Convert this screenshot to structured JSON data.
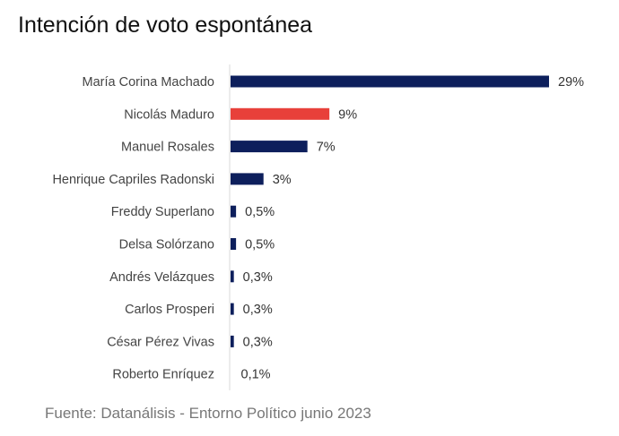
{
  "chart_data": {
    "type": "bar",
    "orientation": "horizontal",
    "title": "Intención de voto espontánea",
    "source": "Fuente: Datanálisis - Entorno Político junio 2023",
    "categories": [
      "María Corina Machado",
      "Nicolás Maduro",
      "Manuel Rosales",
      "Henrique Capriles Radonski",
      "Freddy Superlano",
      "Delsa Solórzano",
      "Andrés Velázques",
      "Carlos Prosperi",
      "César Pérez Vivas",
      "Roberto Enríquez"
    ],
    "values": [
      29,
      9,
      7,
      3,
      0.5,
      0.5,
      0.3,
      0.3,
      0.3,
      0.1
    ],
    "value_labels": [
      "29%",
      "9%",
      "7%",
      "3%",
      "0,5%",
      "0,5%",
      "0,3%",
      "0,3%",
      "0,3%",
      "0,1%"
    ],
    "bar_colors": [
      "#0d1f5c",
      "#e8403a",
      "#0d1f5c",
      "#0d1f5c",
      "#0d1f5c",
      "#0d1f5c",
      "#0d1f5c",
      "#0d1f5c",
      "#0d1f5c",
      "#0d1f5c"
    ],
    "xlim": [
      0,
      29
    ],
    "grid": false,
    "legend": "none"
  }
}
